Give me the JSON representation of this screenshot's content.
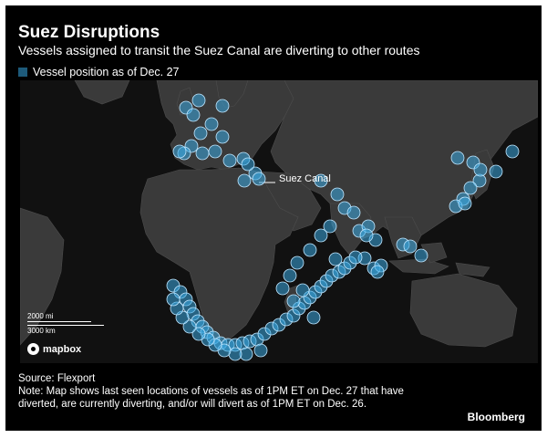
{
  "header": {
    "title": "Suez Disruptions",
    "subtitle": "Vessels assigned to transit the Suez Canal are diverting to other routes"
  },
  "legend": {
    "label": "Vessel position as of Dec. 27",
    "color": "#1d5a7a"
  },
  "map": {
    "annotation": "Suez Canal",
    "scale": {
      "miles": "2000 mi",
      "km": "3000 km"
    },
    "attribution": "mapbox",
    "marker_color": "#3aa8e0",
    "land_color": "#3a3a3a",
    "ocean_color": "#111111"
  },
  "footer": {
    "source": "Source: Flexport",
    "note": "Note: Map shows last seen locations of vessels as of 1PM ET on Dec. 27 that have diverted, are currently diverting, and/or will divert as of 1PM ET on Dec. 26.",
    "brand": "Bloomberg"
  }
}
